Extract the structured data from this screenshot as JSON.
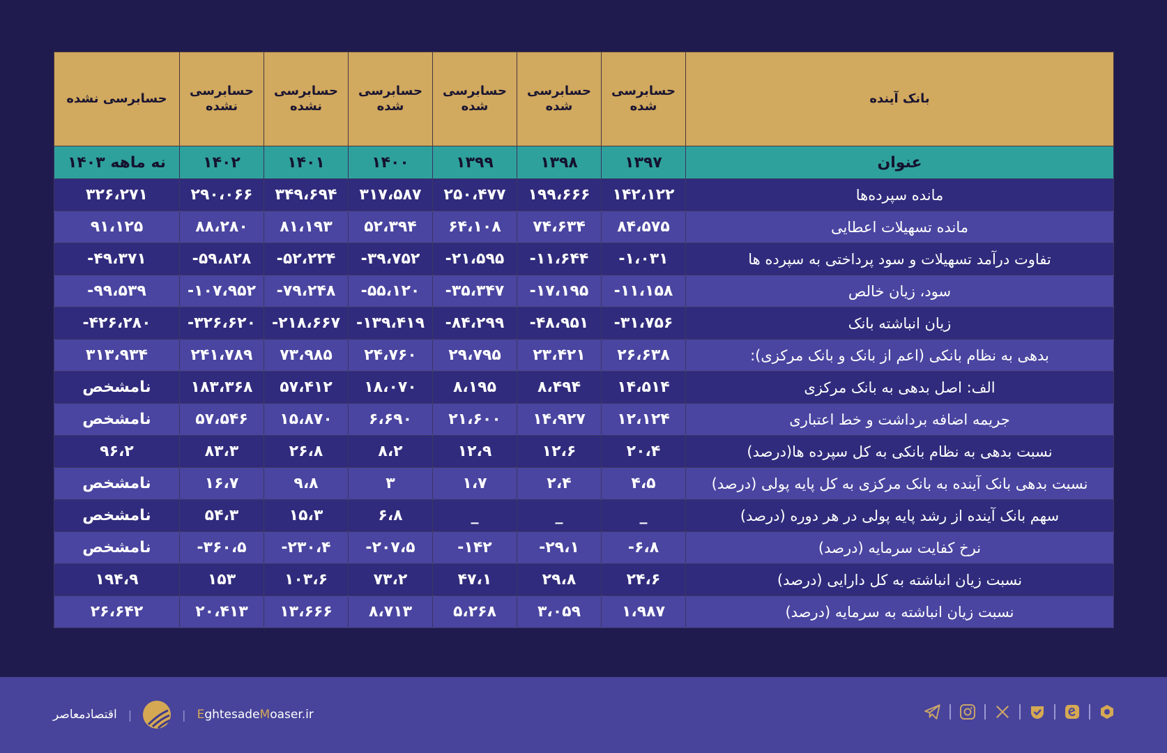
{
  "table": {
    "bank_name": "بانک آینده",
    "audit_status": [
      "حسابرسی شده",
      "حسابرسی شده",
      "حسابرسی شده",
      "حسابرسی شده",
      "حسابرسی نشده",
      "حسابرسی نشده",
      "حسابرسی نشده"
    ],
    "title_header": "عنوان",
    "years": [
      "۱۳۹۷",
      "۱۳۹۸",
      "۱۳۹۹",
      "۱۴۰۰",
      "۱۴۰۱",
      "۱۴۰۲",
      "نه ماهه ۱۴۰۳"
    ],
    "rows": [
      {
        "title": "مانده سپرده‌ها",
        "values": [
          "۱۴۲،۱۲۲",
          "۱۹۹،۶۶۶",
          "۲۵۰،۴۷۷",
          "۳۱۷،۵۸۷",
          "۳۴۹،۶۹۴",
          "۲۹۰،۰۶۶",
          "۳۲۶،۲۷۱"
        ]
      },
      {
        "title": "مانده تسهیلات اعطایی",
        "values": [
          "۸۴،۵۷۵",
          "۷۴،۶۳۴",
          "۶۴،۱۰۸",
          "۵۲،۳۹۴",
          "۸۱،۱۹۳",
          "۸۸،۲۸۰",
          "۹۱،۱۲۵"
        ]
      },
      {
        "title": "تفاوت درآمد تسهیلات و سود پرداختی به سپرده ها",
        "values": [
          "۱،۰۳۱-",
          "۱۱،۶۴۴-",
          "۲۱،۵۹۵-",
          "۳۹،۷۵۲-",
          "۵۲،۲۲۴-",
          "۵۹،۸۲۸-",
          "۴۹،۳۷۱-"
        ]
      },
      {
        "title": "سود، زیان خالص",
        "values": [
          "۱۱،۱۵۸-",
          "۱۷،۱۹۵-",
          "۳۵،۳۴۷-",
          "۵۵،۱۲۰-",
          "۷۹،۲۴۸-",
          "۱۰۷،۹۵۲-",
          "۹۹،۵۳۹-"
        ]
      },
      {
        "title": "زیان انباشته بانک",
        "values": [
          "۳۱،۷۵۶-",
          "۴۸،۹۵۱-",
          "۸۴،۲۹۹-",
          "۱۳۹،۴۱۹-",
          "۲۱۸،۶۶۷-",
          "۳۲۶،۶۲۰-",
          "۴۲۶،۲۸۰-"
        ]
      },
      {
        "title": "بدهی به نظام بانکی (اعم از بانک و بانک مرکزی):",
        "values": [
          "۲۶،۶۳۸",
          "۲۳،۴۲۱",
          "۲۹،۷۹۵",
          "۲۴،۷۶۰",
          "۷۳،۹۸۵",
          "۲۴۱،۷۸۹",
          "۳۱۳،۹۳۴"
        ]
      },
      {
        "title": "الف: اصل بدهی به بانک مرکزی",
        "values": [
          "۱۴،۵۱۴",
          "۸،۴۹۴",
          "۸،۱۹۵",
          "۱۸،۰۷۰",
          "۵۷،۴۱۲",
          "۱۸۳،۳۶۸",
          "نامشخص"
        ]
      },
      {
        "title": "جریمه اضافه برداشت و خط اعتباری",
        "values": [
          "۱۲،۱۲۴",
          "۱۴،۹۲۷",
          "۲۱،۶۰۰",
          "۶،۶۹۰",
          "۱۵،۸۷۰",
          "۵۷،۵۴۶",
          "نامشخص"
        ]
      },
      {
        "title": "نسبت بدهی به نظام بانکی  به کل سپرده ها(درصد)",
        "values": [
          "۲۰،۴",
          "۱۲،۶",
          "۱۲،۹",
          "۸،۲",
          "۲۶،۸",
          "۸۳،۳",
          "۹۶،۲"
        ]
      },
      {
        "title": "نسبت بدهی بانک آینده به بانک مرکزی به کل پایه پولی (درصد)",
        "values": [
          "۴،۵",
          "۲،۴",
          "۱،۷",
          "۳",
          "۹،۸",
          "۱۶،۷",
          "نامشخص"
        ]
      },
      {
        "title": "سهم بانک آینده از رشد پایه پولی در هر دوره (درصد)",
        "values": [
          "_",
          "_",
          "_",
          "۶،۸",
          "۱۵،۳",
          "۵۴،۳",
          "نامشخص"
        ]
      },
      {
        "title": "نرخ کفایت سرمایه (درصد)",
        "values": [
          "۶،۸-",
          "۲۹،۱-",
          "۱۴۲-",
          "۲۰۷،۵-",
          "۲۳۰،۴-",
          "۳۶۰،۵-",
          "نامشخص"
        ]
      },
      {
        "title": "نسبت زیان انباشته به کل دارایی (درصد)",
        "values": [
          "۲۴،۶",
          "۲۹،۸",
          "۴۷،۱",
          "۷۳،۲",
          "۱۰۳،۶",
          "۱۵۳",
          "۱۹۴،۹"
        ]
      },
      {
        "title": "نسبت زیان انباشته به سرمایه (درصد)",
        "values": [
          "۱،۹۸۷",
          "۳،۰۵۹",
          "۵،۲۶۸",
          "۸،۷۱۳",
          "۱۳،۶۶۶",
          "۲۰،۴۱۳",
          "۲۶،۶۴۲"
        ]
      }
    ]
  },
  "footer": {
    "brand_fa": "اقتصادمعاصر",
    "url_e": "E",
    "url_part1": "ghtesade",
    "url_m": "M",
    "url_part2": "oaser.ir",
    "socials": [
      "telegram-icon",
      "instagram-icon",
      "x-icon",
      "verified-icon",
      "eitaa-icon",
      "rubika-icon"
    ]
  },
  "colors": {
    "background": "#201b4f",
    "header_gold": "#d1a95f",
    "year_teal": "#2fa19c",
    "row_dark": "#302b7c",
    "row_light": "#4a45a0",
    "footer": "#48449b",
    "accent": "#d5a954"
  }
}
